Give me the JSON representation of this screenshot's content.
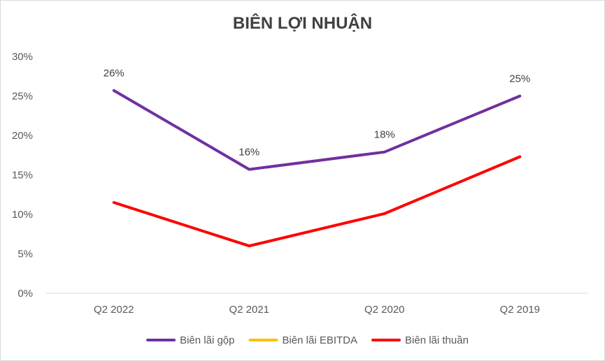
{
  "chart_data": {
    "type": "line",
    "title": "BIÊN LỢI NHUẬN",
    "categories": [
      "Q2 2022",
      "Q2 2021",
      "Q2 2020",
      "Q2 2019"
    ],
    "ylim": [
      0,
      30
    ],
    "yticks": [
      "0%",
      "5%",
      "10%",
      "15%",
      "20%",
      "25%",
      "30%"
    ],
    "grid": false,
    "legend_position": "bottom",
    "series": [
      {
        "name": "Biên lãi gộp",
        "color": "#7030A0",
        "values": [
          25.7,
          15.7,
          17.9,
          25.0
        ],
        "labels": [
          "26%",
          "16%",
          "18%",
          "25%"
        ]
      },
      {
        "name": "Biên lãi EBITDA",
        "color": "#FFC000",
        "values": [
          null,
          null,
          null,
          null
        ],
        "labels": []
      },
      {
        "name": "Biên lãi thuần",
        "color": "#FF0000",
        "values": [
          11.5,
          6.0,
          10.1,
          17.3
        ],
        "labels": []
      }
    ]
  }
}
